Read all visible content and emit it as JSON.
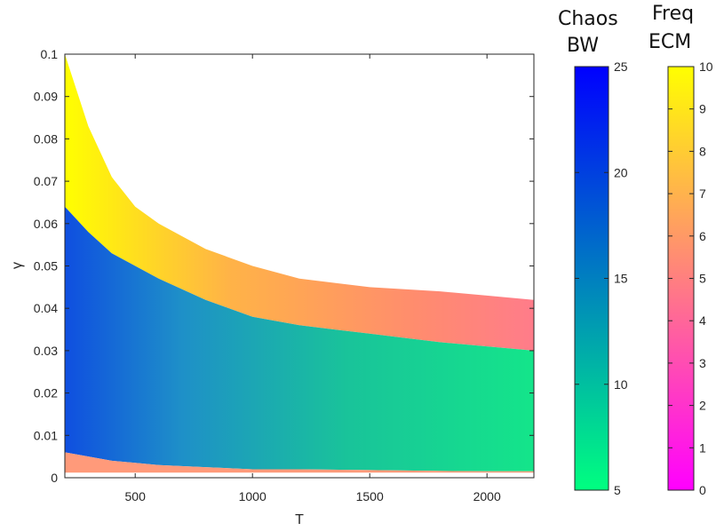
{
  "chart_data": {
    "type": "heatmap",
    "xlabel": "T",
    "ylabel": "γ",
    "xlim": [
      200,
      2200
    ],
    "ylim": [
      0,
      0.1
    ],
    "x_ticks": [
      500,
      1000,
      1500,
      2000
    ],
    "x_tick_labels": [
      "500",
      "1000",
      "1500",
      "2000"
    ],
    "y_ticks": [
      0,
      0.01,
      0.02,
      0.03,
      0.04,
      0.05,
      0.06,
      0.07,
      0.08,
      0.09,
      0.1
    ],
    "y_tick_labels": [
      "0",
      "0.01",
      "0.02",
      "0.03",
      "0.04",
      "0.05",
      "0.06",
      "0.07",
      "0.08",
      "0.09",
      "0.1"
    ],
    "grid": false,
    "boundaries": {
      "T": [
        200,
        300,
        400,
        500,
        600,
        800,
        1000,
        1200,
        1500,
        1800,
        2000,
        2200
      ],
      "upper_gamma": [
        0.1,
        0.083,
        0.071,
        0.064,
        0.06,
        0.054,
        0.05,
        0.047,
        0.045,
        0.044,
        0.043,
        0.042
      ],
      "chaos_gamma": [
        0.064,
        0.058,
        0.053,
        0.05,
        0.047,
        0.042,
        0.038,
        0.036,
        0.034,
        0.032,
        0.031,
        0.03
      ],
      "lower_gamma": [
        0.006,
        0.005,
        0.004,
        0.0035,
        0.003,
        0.0025,
        0.002,
        0.002,
        0.0018,
        0.0016,
        0.0015,
        0.0015
      ]
    },
    "colorbars": [
      {
        "title_lines": [
          "Chaos",
          "BW"
        ],
        "range": [
          5,
          25
        ],
        "ticks": [
          5,
          10,
          15,
          20,
          25
        ],
        "tick_labels": [
          "5",
          "10",
          "15",
          "20",
          "25"
        ],
        "colors": [
          "#00ff80",
          "#0000ff"
        ]
      },
      {
        "title_lines": [
          "Freq",
          "ECM"
        ],
        "range": [
          0,
          10
        ],
        "ticks": [
          0,
          1,
          2,
          3,
          4,
          5,
          6,
          7,
          8,
          9,
          10
        ],
        "tick_labels": [
          "0",
          "1",
          "2",
          "3",
          "4",
          "5",
          "6",
          "7",
          "8",
          "9",
          "10"
        ],
        "colors": [
          "#ff00ff",
          "#ffff00"
        ]
      }
    ]
  }
}
